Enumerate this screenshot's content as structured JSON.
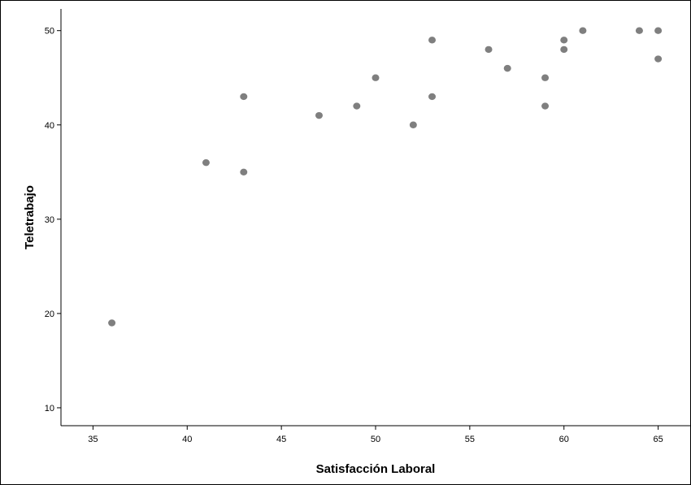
{
  "chart_data": {
    "type": "scatter",
    "title": "",
    "xlabel": "Satisfacción Laboral",
    "ylabel": "Teletrabajo",
    "xlim": [
      33.3,
      66.7
    ],
    "ylim": [
      8.1,
      52.3
    ],
    "xticks": [
      35,
      40,
      45,
      50,
      55,
      60,
      65
    ],
    "yticks": [
      10,
      20,
      30,
      40,
      50
    ],
    "grid": false,
    "marker_color": "#7f7f7f",
    "points": [
      {
        "x": 36,
        "y": 19
      },
      {
        "x": 41,
        "y": 36
      },
      {
        "x": 43,
        "y": 43
      },
      {
        "x": 43,
        "y": 35
      },
      {
        "x": 47,
        "y": 41
      },
      {
        "x": 49,
        "y": 42
      },
      {
        "x": 50,
        "y": 45
      },
      {
        "x": 52,
        "y": 40
      },
      {
        "x": 53,
        "y": 49
      },
      {
        "x": 53,
        "y": 43
      },
      {
        "x": 56,
        "y": 48
      },
      {
        "x": 57,
        "y": 46
      },
      {
        "x": 59,
        "y": 45
      },
      {
        "x": 59,
        "y": 42
      },
      {
        "x": 60,
        "y": 49
      },
      {
        "x": 60,
        "y": 48
      },
      {
        "x": 61,
        "y": 50
      },
      {
        "x": 64,
        "y": 50
      },
      {
        "x": 65,
        "y": 50
      },
      {
        "x": 65,
        "y": 47
      }
    ]
  }
}
